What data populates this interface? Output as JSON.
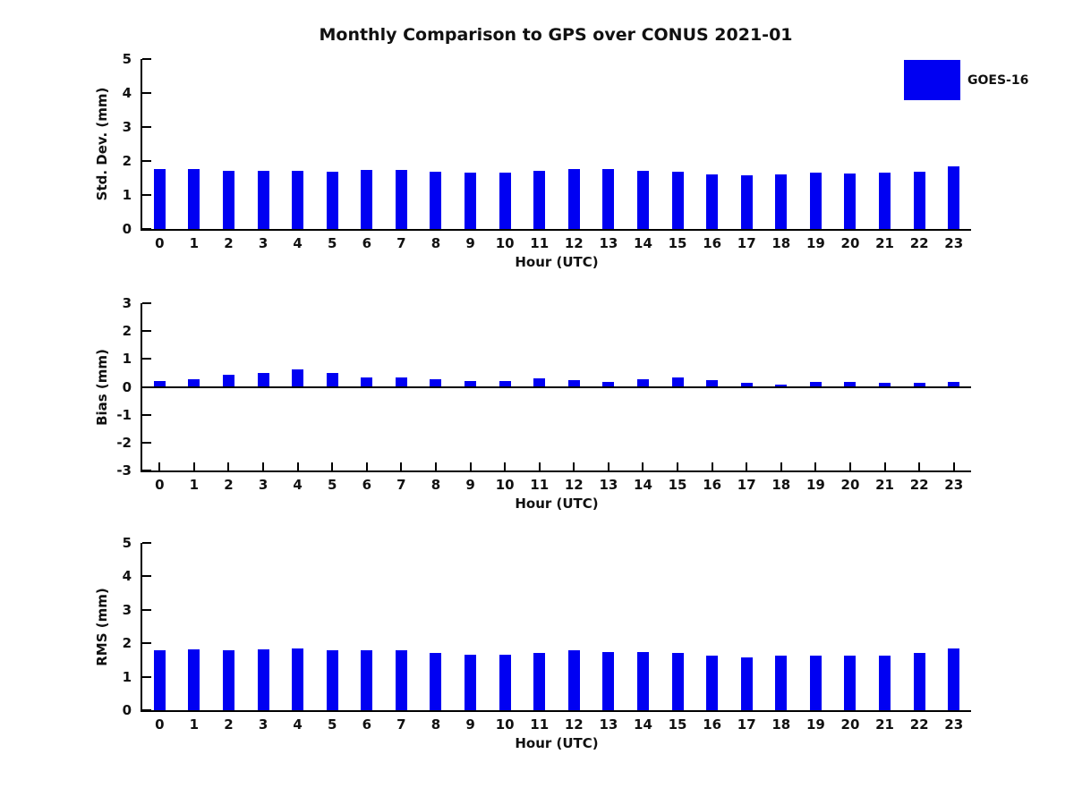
{
  "figure": {
    "title": "Monthly Comparison to GPS over CONUS 2021-01",
    "legend": {
      "label": "GOES-16",
      "color": "#0000f2"
    }
  },
  "colors": {
    "bar": "#0000f2",
    "axis": "#000000",
    "text": "#1a1a1a"
  },
  "chart_data": [
    {
      "id": "stddev",
      "type": "bar",
      "series_name": "GOES-16",
      "ylabel": "Std. Dev. (mm)",
      "xlabel": "Hour (UTC)",
      "categories": [
        "0",
        "1",
        "2",
        "3",
        "4",
        "5",
        "6",
        "7",
        "8",
        "9",
        "10",
        "11",
        "12",
        "13",
        "14",
        "15",
        "16",
        "17",
        "18",
        "19",
        "20",
        "21",
        "22",
        "23"
      ],
      "values": [
        1.76,
        1.76,
        1.72,
        1.72,
        1.7,
        1.68,
        1.73,
        1.74,
        1.68,
        1.65,
        1.66,
        1.7,
        1.76,
        1.77,
        1.71,
        1.68,
        1.61,
        1.57,
        1.6,
        1.65,
        1.63,
        1.66,
        1.69,
        1.83
      ],
      "ylim": [
        0,
        5
      ],
      "yticks": [
        0,
        1,
        2,
        3,
        4,
        5
      ],
      "grid": false,
      "legend_position": "upper right",
      "zero_line": false
    },
    {
      "id": "bias",
      "type": "bar",
      "series_name": "GOES-16",
      "ylabel": "Bias (mm)",
      "xlabel": "Hour (UTC)",
      "categories": [
        "0",
        "1",
        "2",
        "3",
        "4",
        "5",
        "6",
        "7",
        "8",
        "9",
        "10",
        "11",
        "12",
        "13",
        "14",
        "15",
        "16",
        "17",
        "18",
        "19",
        "20",
        "21",
        "22",
        "23"
      ],
      "values": [
        0.22,
        0.28,
        0.43,
        0.49,
        0.63,
        0.51,
        0.34,
        0.34,
        0.27,
        0.21,
        0.21,
        0.32,
        0.25,
        0.17,
        0.27,
        0.34,
        0.24,
        0.16,
        0.09,
        0.17,
        0.17,
        0.13,
        0.13,
        0.19
      ],
      "ylim": [
        -3,
        3
      ],
      "yticks": [
        3,
        2,
        1,
        0,
        -1,
        -2,
        -3
      ],
      "grid": false,
      "zero_line": true
    },
    {
      "id": "rms",
      "type": "bar",
      "series_name": "GOES-16",
      "ylabel": "RMS (mm)",
      "xlabel": "Hour (UTC)",
      "categories": [
        "0",
        "1",
        "2",
        "3",
        "4",
        "5",
        "6",
        "7",
        "8",
        "9",
        "10",
        "11",
        "12",
        "13",
        "14",
        "15",
        "16",
        "17",
        "18",
        "19",
        "20",
        "21",
        "22",
        "23"
      ],
      "values": [
        1.78,
        1.81,
        1.78,
        1.81,
        1.85,
        1.78,
        1.78,
        1.79,
        1.7,
        1.67,
        1.67,
        1.71,
        1.78,
        1.75,
        1.75,
        1.72,
        1.64,
        1.59,
        1.62,
        1.64,
        1.62,
        1.64,
        1.7,
        1.84
      ],
      "ylim": [
        0,
        5
      ],
      "yticks": [
        0,
        1,
        2,
        3,
        4,
        5
      ],
      "grid": false,
      "zero_line": false
    }
  ]
}
